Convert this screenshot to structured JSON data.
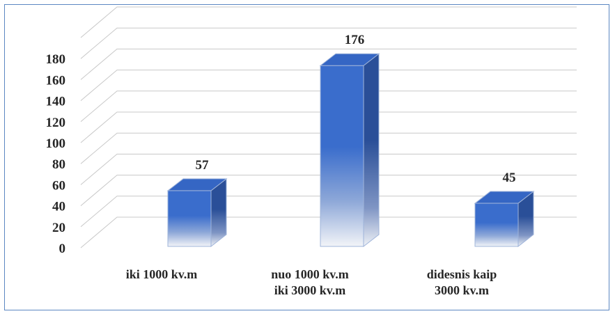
{
  "chart_data": {
    "type": "bar",
    "categories": [
      [
        "iki 1000 kv.m"
      ],
      [
        "nuo 1000 kv.m",
        "iki 3000 kv.m"
      ],
      [
        "didesnis kaip",
        "3000  kv.m"
      ]
    ],
    "values": [
      57,
      176,
      45
    ],
    "data_labels": [
      "57",
      "176",
      "45"
    ],
    "y_ticks": [
      "0",
      "20",
      "40",
      "60",
      "80",
      "100",
      "120",
      "140",
      "160",
      "180"
    ],
    "ylim": [
      0,
      200
    ],
    "grid": true,
    "three_d": true,
    "colors": {
      "bar_front_top": "#3a6dcc",
      "bar_side": "#2a4f98",
      "bar_top": "#3566c4",
      "frame": "#5b87c2"
    }
  }
}
